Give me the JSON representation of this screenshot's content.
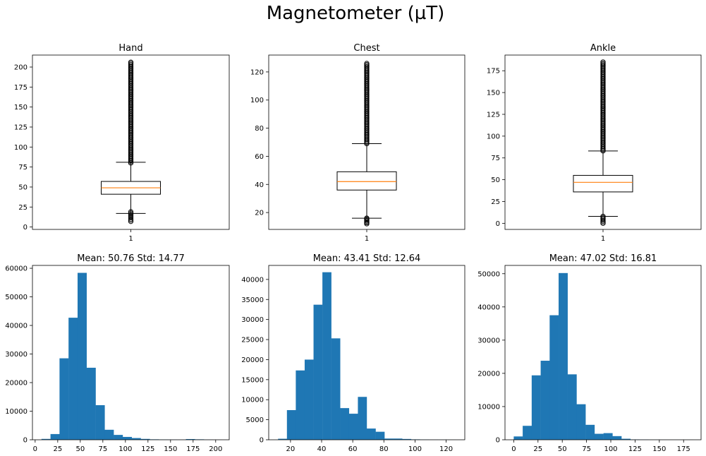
{
  "figure": {
    "title": "Magnetometer (µT)"
  },
  "colors": {
    "hist_fill": "#1f77b4",
    "median_line": "#ff7f0e",
    "axes": "#000000"
  },
  "chart_data": [
    {
      "type": "box",
      "title": "Hand",
      "xticks": [
        "1"
      ],
      "ylim": [
        -3,
        215
      ],
      "yticks": [
        0,
        25,
        50,
        75,
        100,
        125,
        150,
        175,
        200
      ],
      "q1": 41,
      "median": 49,
      "q3": 57,
      "whisker_low": 17,
      "whisker_high": 81,
      "flier_low_range": [
        7,
        19
      ],
      "flier_high_range": [
        80,
        206
      ]
    },
    {
      "type": "box",
      "title": "Chest",
      "xticks": [
        "1"
      ],
      "ylim": [
        8,
        132
      ],
      "yticks": [
        20,
        40,
        60,
        80,
        100,
        120
      ],
      "q1": 36,
      "median": 42,
      "q3": 49,
      "whisker_low": 16,
      "whisker_high": 69,
      "flier_low_range": [
        12,
        16
      ],
      "flier_high_range": [
        69,
        126
      ]
    },
    {
      "type": "box",
      "title": "Ankle",
      "xticks": [
        "1"
      ],
      "ylim": [
        -7,
        193
      ],
      "yticks": [
        0,
        25,
        50,
        75,
        100,
        125,
        150,
        175
      ],
      "q1": 36,
      "median": 47,
      "q3": 55,
      "whisker_low": 8,
      "whisker_high": 83,
      "flier_low_range": [
        0,
        8
      ],
      "flier_high_range": [
        83,
        185
      ]
    },
    {
      "type": "bar",
      "title": "Mean: 50.76  Std: 14.77",
      "xlim": [
        -3,
        215
      ],
      "ylim": [
        0,
        61000
      ],
      "xticks": [
        0,
        25,
        50,
        75,
        100,
        125,
        150,
        175,
        200
      ],
      "yticks": [
        0,
        10000,
        20000,
        30000,
        40000,
        50000,
        60000
      ],
      "bin_start": 7,
      "bin_width": 10,
      "values": [
        300,
        2000,
        28500,
        42700,
        58400,
        25200,
        12100,
        3500,
        1700,
        1000,
        600,
        300,
        150,
        80,
        60,
        40,
        250,
        150,
        50,
        20
      ]
    },
    {
      "type": "bar",
      "title": "Mean: 43.41  Std: 12.64",
      "xlim": [
        6,
        132
      ],
      "ylim": [
        0,
        43500
      ],
      "xticks": [
        20,
        40,
        60,
        80,
        100,
        120
      ],
      "yticks": [
        0,
        5000,
        10000,
        15000,
        20000,
        25000,
        30000,
        35000,
        40000
      ],
      "bin_start": 12,
      "bin_width": 5.7,
      "values": [
        250,
        7400,
        17300,
        20000,
        33700,
        41800,
        25300,
        7900,
        6500,
        10700,
        2800,
        2000,
        300,
        300,
        200,
        100,
        50,
        30,
        20,
        10
      ]
    },
    {
      "type": "bar",
      "title": "Mean: 47.02  Std: 16.81",
      "xlim": [
        -9,
        193
      ],
      "ylim": [
        0,
        52500
      ],
      "xticks": [
        0,
        25,
        50,
        75,
        100,
        125,
        150,
        175
      ],
      "yticks": [
        0,
        10000,
        20000,
        30000,
        40000,
        50000
      ],
      "bin_start": 0,
      "bin_width": 9.25,
      "values": [
        1000,
        4200,
        19400,
        23800,
        37500,
        50200,
        19700,
        10700,
        4500,
        1800,
        2000,
        1100,
        300,
        100,
        50,
        30,
        20,
        10,
        10,
        10
      ]
    }
  ]
}
